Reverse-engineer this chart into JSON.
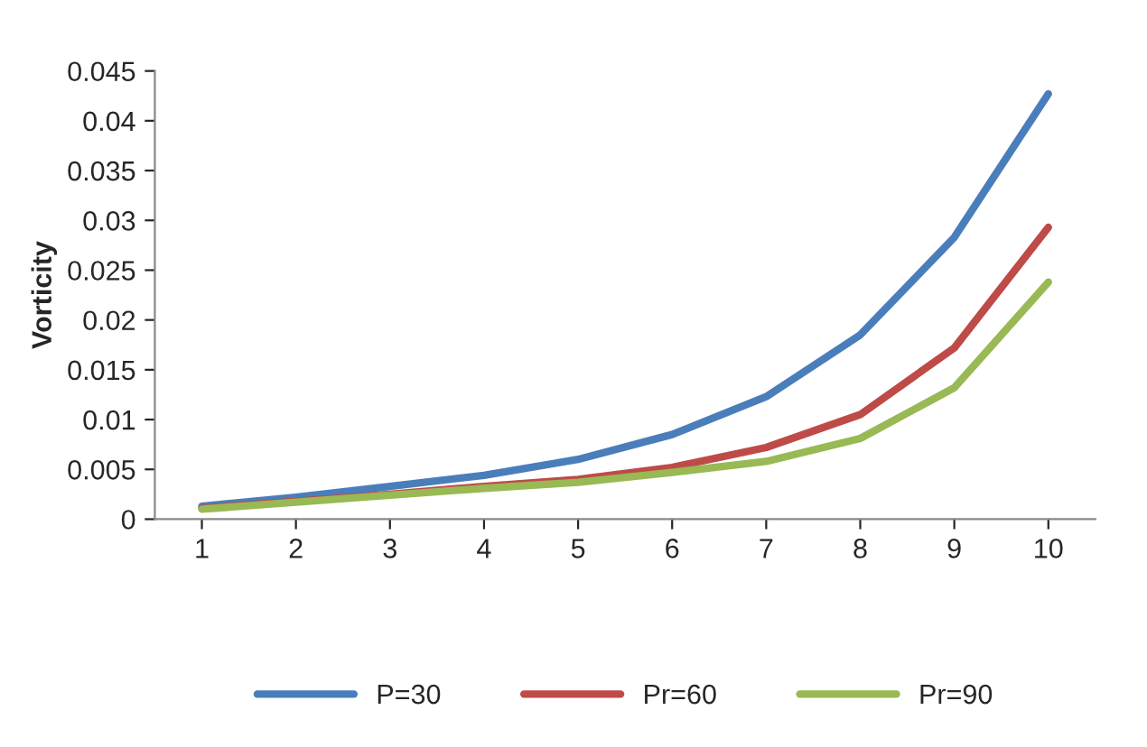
{
  "chart_data": {
    "type": "line",
    "ylabel": "Vorticity",
    "categories": [
      "1",
      "2",
      "3",
      "4",
      "5",
      "6",
      "7",
      "8",
      "9",
      "10"
    ],
    "series": [
      {
        "name": "P=30",
        "color": "#4a7ebb",
        "values": [
          0.0013,
          0.0022,
          0.0033,
          0.0044,
          0.006,
          0.0085,
          0.0123,
          0.0185,
          0.0283,
          0.0427
        ]
      },
      {
        "name": "Pr=60",
        "color": "#be4b48",
        "values": [
          0.0011,
          0.0018,
          0.0025,
          0.0033,
          0.004,
          0.0052,
          0.0072,
          0.0105,
          0.0172,
          0.0293
        ]
      },
      {
        "name": "Pr=90",
        "color": "#98b954",
        "values": [
          0.001,
          0.0017,
          0.0024,
          0.0031,
          0.0037,
          0.0047,
          0.0058,
          0.0081,
          0.0132,
          0.0238
        ]
      }
    ],
    "ylim": [
      0,
      0.045
    ],
    "yticks": [
      0,
      0.005,
      0.01,
      0.015,
      0.02,
      0.025,
      0.03,
      0.035,
      0.04,
      0.045
    ],
    "grid": false,
    "legend": "bottom",
    "marker": "none",
    "line_style": "solid"
  }
}
